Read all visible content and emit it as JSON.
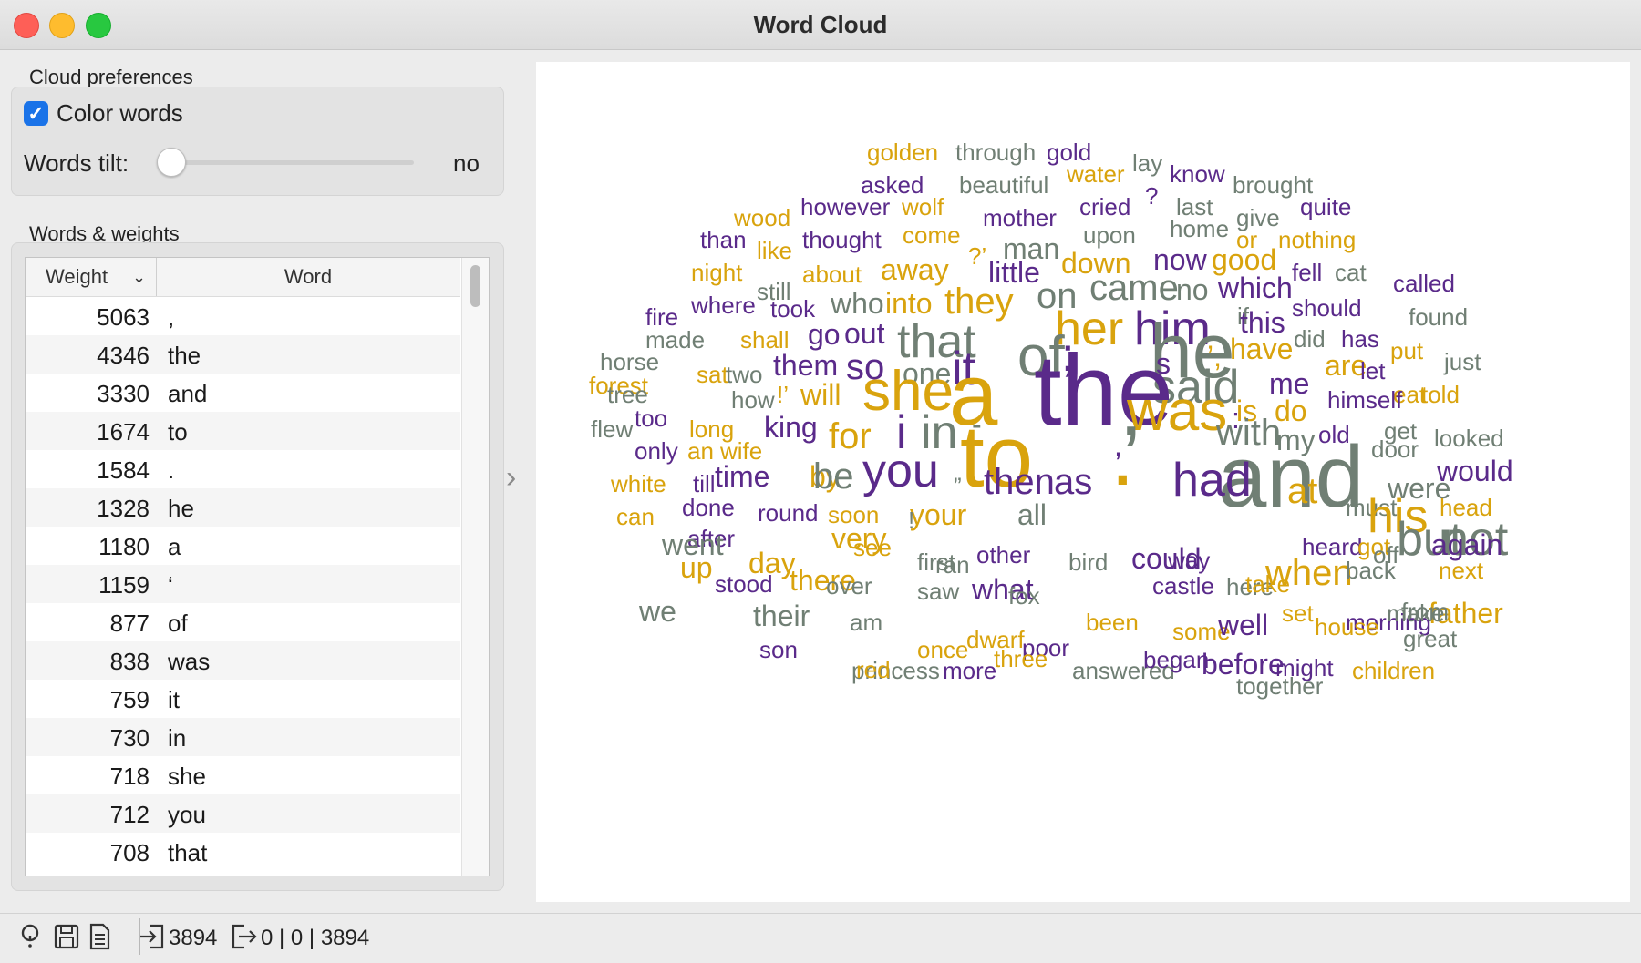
{
  "window": {
    "title": "Word Cloud"
  },
  "preferences": {
    "section_label": "Cloud preferences",
    "color_words_label": "Color words",
    "color_words_checked": true,
    "words_tilt_label": "Words tilt:",
    "words_tilt_value": "no"
  },
  "weights": {
    "section_label": "Words & weights",
    "col_weight": "Weight",
    "col_word": "Word",
    "rows": [
      {
        "weight": "5063",
        "word": ","
      },
      {
        "weight": "4346",
        "word": "the"
      },
      {
        "weight": "3330",
        "word": "and"
      },
      {
        "weight": "1674",
        "word": "to"
      },
      {
        "weight": "1584",
        "word": "."
      },
      {
        "weight": "1328",
        "word": "he"
      },
      {
        "weight": "1180",
        "word": "a"
      },
      {
        "weight": "1159",
        "word": "‘"
      },
      {
        "weight": "877",
        "word": "of"
      },
      {
        "weight": "838",
        "word": "was"
      },
      {
        "weight": "759",
        "word": "it"
      },
      {
        "weight": "730",
        "word": "in"
      },
      {
        "weight": "718",
        "word": "she"
      },
      {
        "weight": "712",
        "word": "you"
      },
      {
        "weight": "708",
        "word": "that"
      }
    ]
  },
  "colors": {
    "gold": "#d9a30d",
    "purple": "#5a2a8a",
    "gray": "#707f74"
  },
  "cloud_words": [
    {
      "t": "golden",
      "c": "gold",
      "s": 1
    },
    {
      "t": "through",
      "c": "gray",
      "s": 1
    },
    {
      "t": "gold",
      "c": "purple",
      "s": 1
    },
    {
      "t": "lay",
      "c": "gray",
      "s": 1
    },
    {
      "t": "asked",
      "c": "purple",
      "s": 1
    },
    {
      "t": "beautiful",
      "c": "gray",
      "s": 1
    },
    {
      "t": "water",
      "c": "gold",
      "s": 1
    },
    {
      "t": "know",
      "c": "purple",
      "s": 1
    },
    {
      "t": "brought",
      "c": "gray",
      "s": 1
    },
    {
      "t": "?",
      "c": "purple",
      "s": 1
    },
    {
      "t": "wood",
      "c": "gold",
      "s": 1
    },
    {
      "t": "however",
      "c": "purple",
      "s": 1
    },
    {
      "t": "wolf",
      "c": "gold",
      "s": 1
    },
    {
      "t": "mother",
      "c": "purple",
      "s": 1
    },
    {
      "t": "cried",
      "c": "purple",
      "s": 1
    },
    {
      "t": "last",
      "c": "gray",
      "s": 1
    },
    {
      "t": "give",
      "c": "gray",
      "s": 1
    },
    {
      "t": "quite",
      "c": "purple",
      "s": 1
    },
    {
      "t": "than",
      "c": "purple",
      "s": 1
    },
    {
      "t": "thought",
      "c": "purple",
      "s": 1
    },
    {
      "t": "come",
      "c": "gold",
      "s": 1
    },
    {
      "t": "upon",
      "c": "gray",
      "s": 1
    },
    {
      "t": "home",
      "c": "gray",
      "s": 1
    },
    {
      "t": "or",
      "c": "gold",
      "s": 1
    },
    {
      "t": "nothing",
      "c": "gold",
      "s": 1
    },
    {
      "t": "like",
      "c": "gold",
      "s": 1
    },
    {
      "t": "?’",
      "c": "gold",
      "s": 1
    },
    {
      "t": "man",
      "c": "gray",
      "s": 2
    },
    {
      "t": "now",
      "c": "purple",
      "s": 2
    },
    {
      "t": "good",
      "c": "gold",
      "s": 2
    },
    {
      "t": "night",
      "c": "gold",
      "s": 1
    },
    {
      "t": "about",
      "c": "gold",
      "s": 1
    },
    {
      "t": "away",
      "c": "gold",
      "s": 2
    },
    {
      "t": "little",
      "c": "purple",
      "s": 2
    },
    {
      "t": "down",
      "c": "gold",
      "s": 2
    },
    {
      "t": "fell",
      "c": "purple",
      "s": 1
    },
    {
      "t": "cat",
      "c": "gray",
      "s": 1
    },
    {
      "t": "called",
      "c": "purple",
      "s": 1
    },
    {
      "t": "still",
      "c": "gray",
      "s": 1
    },
    {
      "t": "where",
      "c": "purple",
      "s": 1
    },
    {
      "t": "took",
      "c": "purple",
      "s": 1
    },
    {
      "t": "who",
      "c": "gray",
      "s": 2
    },
    {
      "t": "into",
      "c": "gold",
      "s": 2
    },
    {
      "t": "they",
      "c": "gold",
      "s": 3
    },
    {
      "t": "on",
      "c": "gray",
      "s": 3
    },
    {
      "t": "came",
      "c": "gray",
      "s": 3
    },
    {
      "t": "no",
      "c": "gray",
      "s": 2
    },
    {
      "t": "which",
      "c": "purple",
      "s": 2
    },
    {
      "t": "should",
      "c": "purple",
      "s": 1
    },
    {
      "t": "found",
      "c": "gray",
      "s": 1
    },
    {
      "t": "fire",
      "c": "purple",
      "s": 1
    },
    {
      "t": "if",
      "c": "gray",
      "s": 1
    },
    {
      "t": "this",
      "c": "purple",
      "s": 2
    },
    {
      "t": "made",
      "c": "gray",
      "s": 1
    },
    {
      "t": "shall",
      "c": "gold",
      "s": 1
    },
    {
      "t": "go",
      "c": "purple",
      "s": 2
    },
    {
      "t": "out",
      "c": "purple",
      "s": 2
    },
    {
      "t": "that",
      "c": "gray",
      "s": 4
    },
    {
      "t": "her",
      "c": "gold",
      "s": 4
    },
    {
      "t": "him",
      "c": "purple",
      "s": 4
    },
    {
      "t": "did",
      "c": "gray",
      "s": 1
    },
    {
      "t": "has",
      "c": "purple",
      "s": 1
    },
    {
      "t": "put",
      "c": "gold",
      "s": 1
    },
    {
      "t": "horse",
      "c": "gray",
      "s": 1
    },
    {
      "t": "’,",
      "c": "gold",
      "s": 2
    },
    {
      "t": "have",
      "c": "gold",
      "s": 2
    },
    {
      "t": "just",
      "c": "gray",
      "s": 1
    },
    {
      "t": "forest",
      "c": "gold",
      "s": 1
    },
    {
      "t": "sat",
      "c": "gold",
      "s": 1
    },
    {
      "t": "two",
      "c": "gray",
      "s": 1
    },
    {
      "t": "them",
      "c": "purple",
      "s": 2
    },
    {
      "t": "so",
      "c": "purple",
      "s": 3
    },
    {
      "t": "one",
      "c": "gray",
      "s": 2
    },
    {
      "t": "it",
      "c": "purple",
      "s": 4
    },
    {
      "t": "of",
      "c": "gray",
      "s": 5
    },
    {
      "t": ";",
      "c": "purple",
      "s": 4
    },
    {
      "t": "he",
      "c": "gray",
      "s": 6
    },
    {
      "t": "s",
      "c": "purple",
      "s": 2
    },
    {
      "t": "said",
      "c": "gray",
      "s": 4
    },
    {
      "t": "me",
      "c": "purple",
      "s": 2
    },
    {
      "t": "are",
      "c": "gold",
      "s": 2
    },
    {
      "t": "let",
      "c": "purple",
      "s": 1
    },
    {
      "t": "eat",
      "c": "gold",
      "s": 1
    },
    {
      "t": "tree",
      "c": "gray",
      "s": 1
    },
    {
      "t": "how",
      "c": "gray",
      "s": 1
    },
    {
      "t": "!’",
      "c": "gold",
      "s": 1
    },
    {
      "t": "will",
      "c": "gold",
      "s": 2
    },
    {
      "t": "she",
      "c": "gold",
      "s": 5
    },
    {
      "t": "himself",
      "c": "purple",
      "s": 1
    },
    {
      "t": "told",
      "c": "gold",
      "s": 1
    },
    {
      "t": "too",
      "c": "purple",
      "s": 1
    },
    {
      "t": "do",
      "c": "gold",
      "s": 2
    },
    {
      "t": "is",
      "c": "gold",
      "s": 2
    },
    {
      "t": "flew",
      "c": "gray",
      "s": 1
    },
    {
      "t": "long",
      "c": "gold",
      "s": 1
    },
    {
      "t": "king",
      "c": "purple",
      "s": 2
    },
    {
      "t": "a",
      "c": "gold",
      "s": 7
    },
    {
      "t": "the",
      "c": "purple",
      "s": 8
    },
    {
      "t": "was",
      "c": "gold",
      "s": 5
    },
    {
      "t": ":",
      "c": "purple",
      "s": 2
    },
    {
      "t": "old",
      "c": "purple",
      "s": 1
    },
    {
      "t": "get",
      "c": "gray",
      "s": 1
    },
    {
      "t": "looked",
      "c": "gray",
      "s": 1
    },
    {
      "t": "only",
      "c": "purple",
      "s": 1
    },
    {
      "t": "an",
      "c": "gold",
      "s": 1
    },
    {
      "t": "wife",
      "c": "gold",
      "s": 1
    },
    {
      "t": "for",
      "c": "gold",
      "s": 3
    },
    {
      "t": "i",
      "c": "purple",
      "s": 4
    },
    {
      "t": "in",
      "c": "gray",
      "s": 4
    },
    {
      "t": "-",
      "c": "gray",
      "s": 2
    },
    {
      "t": ",",
      "c": "purple",
      "s": 2
    },
    {
      "t": "with",
      "c": "gray",
      "s": 3
    },
    {
      "t": "my",
      "c": "gray",
      "s": 2
    },
    {
      "t": "door",
      "c": "gray",
      "s": 1
    },
    {
      "t": "white",
      "c": "gold",
      "s": 1
    },
    {
      "t": "till",
      "c": "purple",
      "s": 1
    },
    {
      "t": "time",
      "c": "purple",
      "s": 2
    },
    {
      "t": "by",
      "c": "gold",
      "s": 2
    },
    {
      "t": "be",
      "c": "gray",
      "s": 3
    },
    {
      "t": "you",
      "c": "purple",
      "s": 4
    },
    {
      "t": "to",
      "c": "gold",
      "s": 7
    },
    {
      "t": "’",
      "c": "gray",
      "s": 7
    },
    {
      "t": "and",
      "c": "gray",
      "s": 7
    },
    {
      "t": "at",
      "c": "gold",
      "s": 3
    },
    {
      "t": "were",
      "c": "gray",
      "s": 2
    },
    {
      "t": "would",
      "c": "purple",
      "s": 2
    },
    {
      "t": "can",
      "c": "gold",
      "s": 1
    },
    {
      "t": "done",
      "c": "purple",
      "s": 1
    },
    {
      "t": "round",
      "c": "purple",
      "s": 1
    },
    {
      "t": "soon",
      "c": "gold",
      "s": 1
    },
    {
      "t": "your",
      "c": "gold",
      "s": 2
    },
    {
      "t": "then",
      "c": "purple",
      "s": 3
    },
    {
      "t": "as",
      "c": "purple",
      "s": 3
    },
    {
      "t": ".",
      "c": "gold",
      "s": 7
    },
    {
      "t": "must",
      "c": "gray",
      "s": 1
    },
    {
      "t": "head",
      "c": "gold",
      "s": 1
    },
    {
      "t": "after",
      "c": "purple",
      "s": 1
    },
    {
      "t": "very",
      "c": "gold",
      "s": 2
    },
    {
      "t": "!",
      "c": "gray",
      "s": 1
    },
    {
      "t": "„",
      "c": "gray",
      "s": 1
    },
    {
      "t": "all",
      "c": "gray",
      "s": 2
    },
    {
      "t": "had",
      "c": "purple",
      "s": 4
    },
    {
      "t": "his",
      "c": "gold",
      "s": 4
    },
    {
      "t": "but",
      "c": "gray",
      "s": 4
    },
    {
      "t": "not",
      "c": "gray",
      "s": 4
    },
    {
      "t": "went",
      "c": "gray",
      "s": 2
    },
    {
      "t": "day",
      "c": "gold",
      "s": 2
    },
    {
      "t": "see",
      "c": "gold",
      "s": 1
    },
    {
      "t": "ran",
      "c": "gray",
      "s": 1
    },
    {
      "t": "first",
      "c": "gray",
      "s": 1
    },
    {
      "t": "other",
      "c": "purple",
      "s": 1
    },
    {
      "t": "bird",
      "c": "gray",
      "s": 1
    },
    {
      "t": "could",
      "c": "purple",
      "s": 2
    },
    {
      "t": "way",
      "c": "purple",
      "s": 1
    },
    {
      "t": "heard",
      "c": "purple",
      "s": 1
    },
    {
      "t": "got",
      "c": "gold",
      "s": 1
    },
    {
      "t": "off",
      "c": "gray",
      "s": 1
    },
    {
      "t": "again",
      "c": "purple",
      "s": 2
    },
    {
      "t": "up",
      "c": "gold",
      "s": 2
    },
    {
      "t": "there",
      "c": "gold",
      "s": 2
    },
    {
      "t": "when",
      "c": "gold",
      "s": 3
    },
    {
      "t": "back",
      "c": "gray",
      "s": 1
    },
    {
      "t": "next",
      "c": "gold",
      "s": 1
    },
    {
      "t": "stood",
      "c": "purple",
      "s": 1
    },
    {
      "t": "over",
      "c": "gray",
      "s": 1
    },
    {
      "t": "what",
      "c": "purple",
      "s": 2
    },
    {
      "t": "saw",
      "c": "gray",
      "s": 1
    },
    {
      "t": "fox",
      "c": "gray",
      "s": 1
    },
    {
      "t": "castle",
      "c": "purple",
      "s": 1
    },
    {
      "t": "here",
      "c": "gray",
      "s": 1
    },
    {
      "t": "take",
      "c": "gold",
      "s": 1
    },
    {
      "t": "father",
      "c": "gold",
      "s": 2
    },
    {
      "t": "from",
      "c": "gray",
      "s": 1
    },
    {
      "t": "we",
      "c": "gray",
      "s": 2
    },
    {
      "t": "their",
      "c": "gray",
      "s": 2
    },
    {
      "t": "am",
      "c": "gray",
      "s": 1
    },
    {
      "t": "set",
      "c": "gold",
      "s": 1
    },
    {
      "t": "morning",
      "c": "purple",
      "s": 1
    },
    {
      "t": "great",
      "c": "gray",
      "s": 1
    },
    {
      "t": "son",
      "c": "purple",
      "s": 1
    },
    {
      "t": "once",
      "c": "gold",
      "s": 1
    },
    {
      "t": "dwarf",
      "c": "gold",
      "s": 1
    },
    {
      "t": "poor",
      "c": "purple",
      "s": 1
    },
    {
      "t": "been",
      "c": "gold",
      "s": 1
    },
    {
      "t": "some",
      "c": "gold",
      "s": 1
    },
    {
      "t": "well",
      "c": "purple",
      "s": 2
    },
    {
      "t": "before",
      "c": "purple",
      "s": 2
    },
    {
      "t": "house",
      "c": "gold",
      "s": 1
    },
    {
      "t": "princess",
      "c": "gray",
      "s": 1
    },
    {
      "t": "red",
      "c": "gold",
      "s": 1
    },
    {
      "t": "more",
      "c": "purple",
      "s": 1
    },
    {
      "t": "three",
      "c": "gold",
      "s": 1
    },
    {
      "t": "answered",
      "c": "gray",
      "s": 1
    },
    {
      "t": "began",
      "c": "purple",
      "s": 1
    },
    {
      "t": "together",
      "c": "gray",
      "s": 1
    },
    {
      "t": "might",
      "c": "purple",
      "s": 1
    },
    {
      "t": "children",
      "c": "gold",
      "s": 1
    },
    {
      "t": "make",
      "c": "gray",
      "s": 1
    }
  ],
  "status": {
    "input_count": "3894",
    "output_counts": "0 | 0 | 3894"
  }
}
